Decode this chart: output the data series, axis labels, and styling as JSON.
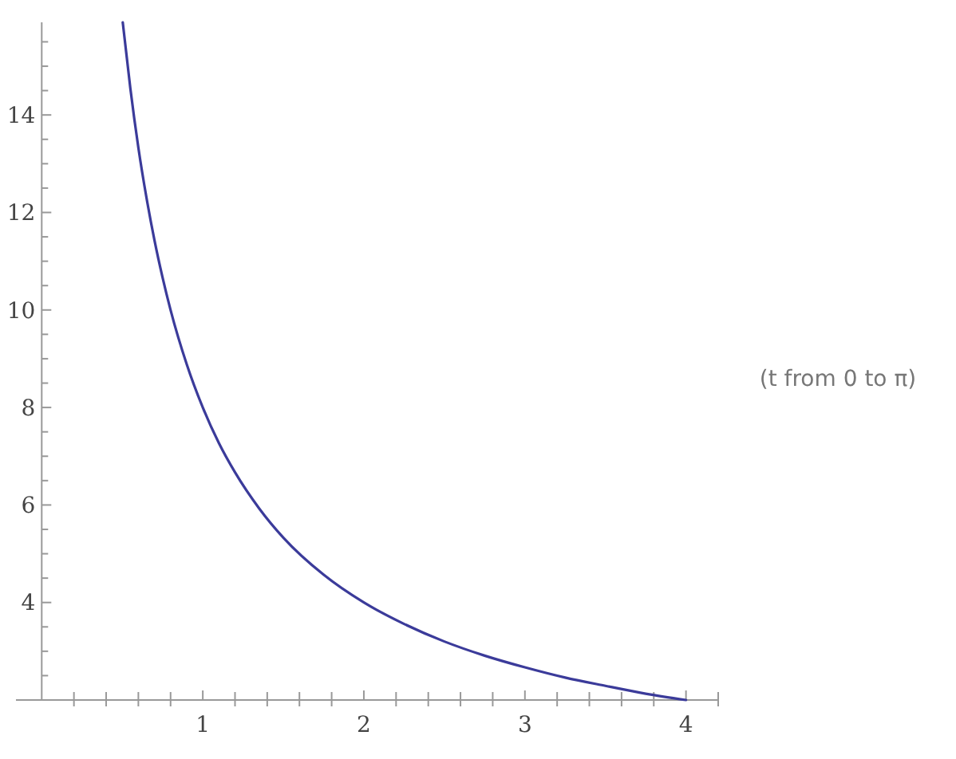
{
  "chart_data": {
    "type": "line",
    "x": [
      0.503,
      0.55,
      0.6,
      0.65,
      0.7,
      0.75,
      0.8,
      0.9,
      1,
      1.1,
      1.2,
      1.35,
      1.5,
      1.75,
      2,
      2.25,
      2.5,
      2.75,
      3,
      3.25,
      3.5,
      3.75,
      4
    ],
    "series": [
      {
        "color": "#3b3b9a",
        "values": [
          15.9,
          14.55,
          13.33,
          12.31,
          11.43,
          10.67,
          10,
          8.89,
          8,
          7.27,
          6.67,
          5.93,
          5.33,
          4.57,
          4,
          3.56,
          3.2,
          2.91,
          2.67,
          2.46,
          2.29,
          2.13,
          2
        ]
      }
    ],
    "xlim": [
      -0.16,
      4.2
    ],
    "ylim": [
      2,
      15.9
    ],
    "xticks": [
      {
        "value": 0.2,
        "label": null
      },
      {
        "value": 0.4,
        "label": null
      },
      {
        "value": 0.6,
        "label": null
      },
      {
        "value": 0.8,
        "label": null
      },
      1,
      {
        "value": 1.2,
        "label": null
      },
      {
        "value": 1.4,
        "label": null
      },
      {
        "value": 1.6,
        "label": null
      },
      {
        "value": 1.8,
        "label": null
      },
      2,
      {
        "value": 2.2,
        "label": null
      },
      {
        "value": 2.4,
        "label": null
      },
      {
        "value": 2.6,
        "label": null
      },
      {
        "value": 2.8,
        "label": null
      },
      3,
      {
        "value": 3.2,
        "label": null
      },
      {
        "value": 3.4,
        "label": null
      },
      {
        "value": 3.6,
        "label": null
      },
      {
        "value": 3.8,
        "label": null
      },
      4,
      {
        "value": 4.2,
        "label": null
      }
    ],
    "yticks": [
      {
        "value": 2.5,
        "label": null
      },
      {
        "value": 3,
        "label": null
      },
      {
        "value": 3.5,
        "label": null
      },
      4,
      {
        "value": 4.5,
        "label": null
      },
      {
        "value": 5,
        "label": null
      },
      {
        "value": 5.5,
        "label": null
      },
      6,
      {
        "value": 6.5,
        "label": null
      },
      {
        "value": 7,
        "label": null
      },
      {
        "value": 7.5,
        "label": null
      },
      8,
      {
        "value": 8.5,
        "label": null
      },
      {
        "value": 9,
        "label": null
      },
      {
        "value": 9.5,
        "label": null
      },
      10,
      {
        "value": 10.5,
        "label": null
      },
      {
        "value": 11,
        "label": null
      },
      {
        "value": 11.5,
        "label": null
      },
      12,
      {
        "value": 12.5,
        "label": null
      },
      {
        "value": 13,
        "label": null
      },
      {
        "value": 13.5,
        "label": null
      },
      14,
      {
        "value": 14.5,
        "label": null
      },
      {
        "value": 15,
        "label": null
      },
      {
        "value": 15.5,
        "label": null
      }
    ],
    "annotations": [
      "(t from 0 to π)"
    ],
    "line_style": "solid",
    "marker": "none",
    "grid": false
  }
}
